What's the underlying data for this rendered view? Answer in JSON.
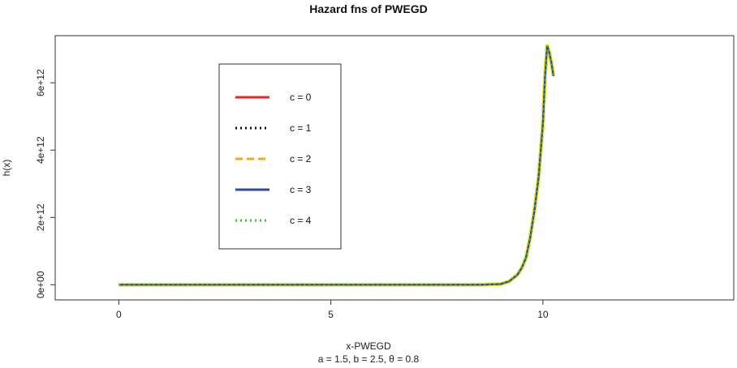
{
  "chart_data": {
    "type": "line",
    "title": "Hazard fns of PWEGD",
    "xlabel": "x-PWEGD",
    "subtitle": "a = 1.5, b = 2.5, θ = 0.8",
    "ylabel": "h(x)",
    "xlim": [
      -1.5,
      14.5
    ],
    "ylim": [
      -450000000000.0,
      7400000000000.0
    ],
    "x_ticks": [
      0,
      5,
      10
    ],
    "x_tick_labels": [
      "0",
      "5",
      "10"
    ],
    "y_ticks": [
      0,
      2000000000000.0,
      4000000000000.0,
      6000000000000.0
    ],
    "y_tick_labels": [
      "0e+00",
      "2e+12",
      "4e+12",
      "6e+12"
    ],
    "grid": false,
    "legend_position": "top-left",
    "curve_x": [
      0,
      1,
      2,
      3,
      4,
      5,
      6,
      7,
      8,
      8.5,
      9.0,
      9.2,
      9.4,
      9.5,
      9.6,
      9.7,
      9.8,
      9.9,
      10.0,
      10.05,
      10.1,
      10.15,
      10.2,
      10.25
    ],
    "curve_y": [
      0,
      0,
      0,
      0,
      0,
      0,
      0,
      0,
      0,
      1000000000.0,
      20000000000.0,
      100000000000.0,
      300000000000.0,
      500000000000.0,
      800000000000.0,
      1400000000000.0,
      2200000000000.0,
      3200000000000.0,
      4800000000000.0,
      6200000000000.0,
      7100000000000.0,
      6900000000000.0,
      6600000000000.0,
      6200000000000.0
    ],
    "series": [
      {
        "name": "c = 0",
        "color": "#e8262a",
        "dash": "solid"
      },
      {
        "name": "c = 1",
        "color": "#111111",
        "dash": "dotted"
      },
      {
        "name": "c = 2",
        "color": "#f5a623",
        "dash": "dashed"
      },
      {
        "name": "c = 3",
        "color": "#34499b",
        "dash": "solid"
      },
      {
        "name": "c = 4",
        "color": "#35c436",
        "dash": "dotted"
      }
    ],
    "overlay_color": "#f5e63a"
  }
}
